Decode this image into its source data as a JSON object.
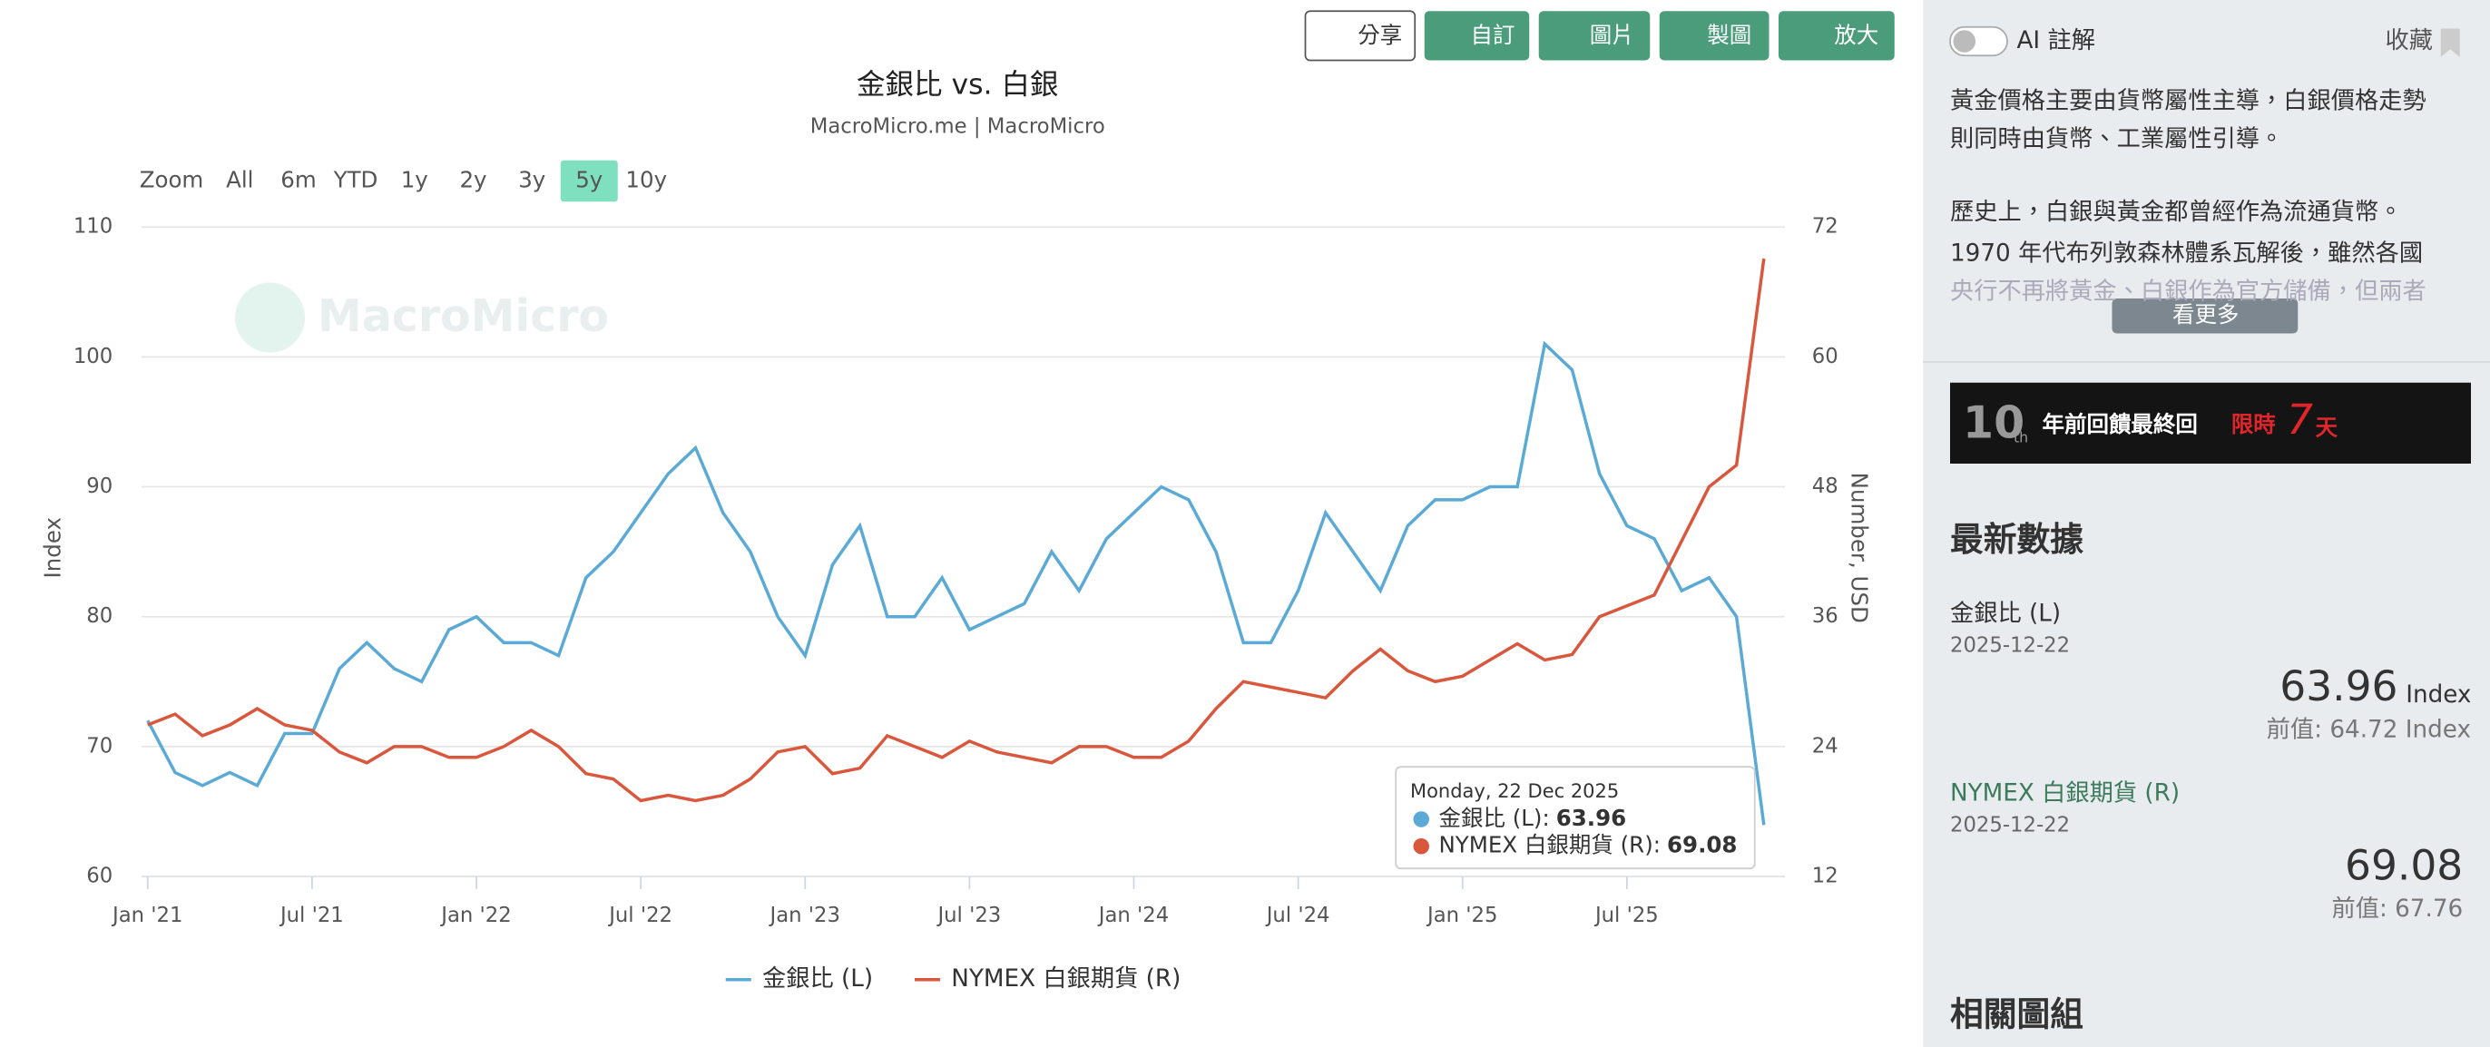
{
  "toolbar": {
    "share": "分享",
    "customize": "自訂",
    "image": "圖片",
    "draw": "製圖",
    "expand": "放大"
  },
  "range_selector": {
    "label": "Zoom",
    "options": [
      "All",
      "6m",
      "YTD",
      "1y",
      "2y",
      "3y",
      "5y",
      "10y"
    ],
    "selected": 6
  },
  "chart_data": {
    "type": "line",
    "title": "金銀比 vs. 白銀",
    "subtitle": "MacroMicro.me | MacroMicro",
    "watermark": "MacroMicro",
    "y_label": "Index",
    "y2_label": "Number, USD",
    "x": [
      "2021-01",
      "2021-02",
      "2021-03",
      "2021-04",
      "2021-05",
      "2021-06",
      "2021-07",
      "2021-08",
      "2021-09",
      "2021-10",
      "2021-11",
      "2021-12",
      "2022-01",
      "2022-02",
      "2022-03",
      "2022-04",
      "2022-05",
      "2022-06",
      "2022-07",
      "2022-08",
      "2022-09",
      "2022-10",
      "2022-11",
      "2022-12",
      "2023-01",
      "2023-02",
      "2023-03",
      "2023-04",
      "2023-05",
      "2023-06",
      "2023-07",
      "2023-08",
      "2023-09",
      "2023-10",
      "2023-11",
      "2023-12",
      "2024-01",
      "2024-02",
      "2024-03",
      "2024-04",
      "2024-05",
      "2024-06",
      "2024-07",
      "2024-08",
      "2024-09",
      "2024-10",
      "2024-11",
      "2024-12",
      "2025-01",
      "2025-02",
      "2025-03",
      "2025-04",
      "2025-05",
      "2025-06",
      "2025-07",
      "2025-08",
      "2025-09",
      "2025-10",
      "2025-11",
      "2025-12"
    ],
    "xlim": [
      "2021-01",
      "2025-12"
    ],
    "xticks": [
      {
        "value": "2021-01",
        "label": "Jan '21"
      },
      {
        "value": "2021-07",
        "label": "Jul '21"
      },
      {
        "value": "2022-01",
        "label": "Jan '22"
      },
      {
        "value": "2022-07",
        "label": "Jul '22"
      },
      {
        "value": "2023-01",
        "label": "Jan '23"
      },
      {
        "value": "2023-07",
        "label": "Jul '23"
      },
      {
        "value": "2024-01",
        "label": "Jan '24"
      },
      {
        "value": "2024-07",
        "label": "Jul '24"
      },
      {
        "value": "2025-01",
        "label": "Jan '25"
      },
      {
        "value": "2025-07",
        "label": "Jul '25"
      }
    ],
    "ylim": [
      60,
      110
    ],
    "yticks": [
      60,
      70,
      80,
      90,
      100,
      110
    ],
    "y2lim": [
      12,
      72
    ],
    "y2ticks": [
      12,
      24,
      36,
      48,
      60,
      72
    ],
    "grid": true,
    "series": [
      {
        "name": "金銀比 (L)",
        "color": "#5aaad5",
        "values": [
          72,
          68,
          67,
          68,
          67,
          71,
          71,
          76,
          78,
          76,
          75,
          79,
          80,
          78,
          78,
          77,
          83,
          85,
          88,
          91,
          93,
          88,
          85,
          80,
          77,
          84,
          87,
          80,
          80,
          83,
          79,
          80,
          81,
          85,
          82,
          86,
          88,
          90,
          89,
          85,
          78,
          78,
          82,
          88,
          85,
          82,
          87,
          89,
          89,
          90,
          90,
          101,
          99,
          91,
          87,
          86,
          82,
          83,
          80,
          63.96
        ]
      },
      {
        "name": "NYMEX 白銀期貨 (R)",
        "color": "#d9573c",
        "axis": "y2",
        "values": [
          26,
          27,
          25,
          26,
          27.5,
          26,
          25.5,
          23.5,
          22.5,
          24,
          24,
          23,
          23,
          24,
          25.5,
          24,
          21.5,
          21,
          19,
          19.5,
          19,
          19.5,
          21,
          23.5,
          24,
          21.5,
          22,
          25,
          24,
          23,
          24.5,
          23.5,
          23,
          22.5,
          24,
          24,
          23,
          23,
          24.5,
          27.5,
          30,
          29.5,
          29,
          28.5,
          31,
          33,
          31,
          30,
          30.5,
          32,
          33.5,
          32,
          32.5,
          36,
          37,
          38,
          43,
          48,
          50,
          69.08
        ]
      }
    ],
    "tooltip": {
      "date": "Monday, 22 Dec 2025",
      "separator": ":"
    }
  },
  "sidebar": {
    "ai_toggle": "AI 註解",
    "favorite": "收藏",
    "description": [
      "黃金價格主要由貨幣屬性主導，白銀價格走勢",
      "則同時由貨幣、工業屬性引導。",
      "歷史上，白銀與黃金都曾經作為流通貨幣。",
      "1970 年代布列敦森林體系瓦解後，雖然各國",
      "央行不再將黃金、白銀作為官方儲備，但兩者"
    ],
    "more": "看更多",
    "banner": {
      "anniversary": "10",
      "suffix": "th",
      "text": "年前回饋最終回",
      "limit": "限時",
      "days": "7",
      "unit": "天"
    },
    "latest_title": "最新數據",
    "items": [
      {
        "date": "2025-12-22",
        "unit": "Index",
        "previous": "前值: 64.72 Index"
      },
      {
        "date": "2025-12-22",
        "previous": "前值: 67.76"
      }
    ],
    "related_title": "相關圖組"
  }
}
